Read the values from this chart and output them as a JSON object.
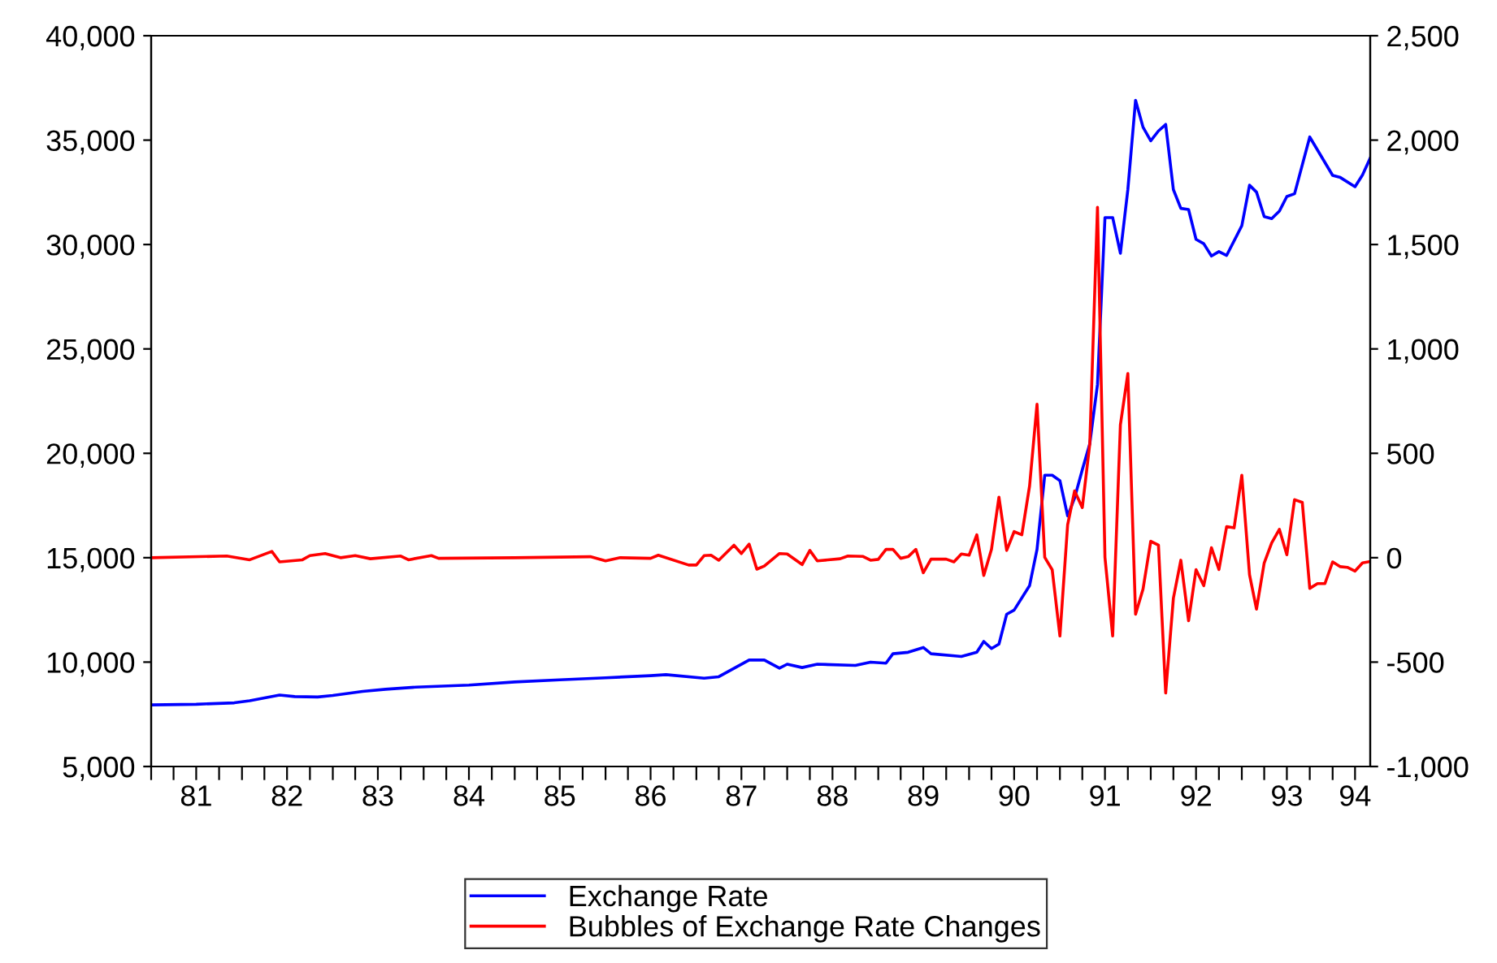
{
  "chart_data": {
    "type": "line",
    "xlim": [
      "1981-01",
      "1994-06"
    ],
    "xticks": [
      {
        "value": "1981-01",
        "label": null
      },
      {
        "value": "1981-04",
        "label": null
      },
      {
        "value": "1981-07",
        "label": "81"
      },
      {
        "value": "1981-10",
        "label": null
      },
      {
        "value": "1982-01",
        "label": null
      },
      {
        "value": "1982-04",
        "label": null
      },
      {
        "value": "1982-07",
        "label": "82"
      },
      {
        "value": "1982-10",
        "label": null
      },
      {
        "value": "1983-01",
        "label": null
      },
      {
        "value": "1983-04",
        "label": null
      },
      {
        "value": "1983-07",
        "label": "83"
      },
      {
        "value": "1983-10",
        "label": null
      },
      {
        "value": "1984-01",
        "label": null
      },
      {
        "value": "1984-04",
        "label": null
      },
      {
        "value": "1984-07",
        "label": "84"
      },
      {
        "value": "1984-10",
        "label": null
      },
      {
        "value": "1985-01",
        "label": null
      },
      {
        "value": "1985-04",
        "label": null
      },
      {
        "value": "1985-07",
        "label": "85"
      },
      {
        "value": "1985-10",
        "label": null
      },
      {
        "value": "1986-01",
        "label": null
      },
      {
        "value": "1986-04",
        "label": null
      },
      {
        "value": "1986-07",
        "label": "86"
      },
      {
        "value": "1986-10",
        "label": null
      },
      {
        "value": "1987-01",
        "label": null
      },
      {
        "value": "1987-04",
        "label": null
      },
      {
        "value": "1987-07",
        "label": "87"
      },
      {
        "value": "1987-10",
        "label": null
      },
      {
        "value": "1988-01",
        "label": null
      },
      {
        "value": "1988-04",
        "label": null
      },
      {
        "value": "1988-07",
        "label": "88"
      },
      {
        "value": "1988-10",
        "label": null
      },
      {
        "value": "1989-01",
        "label": null
      },
      {
        "value": "1989-04",
        "label": null
      },
      {
        "value": "1989-07",
        "label": "89"
      },
      {
        "value": "1989-10",
        "label": null
      },
      {
        "value": "1990-01",
        "label": null
      },
      {
        "value": "1990-04",
        "label": null
      },
      {
        "value": "1990-07",
        "label": "90"
      },
      {
        "value": "1990-10",
        "label": null
      },
      {
        "value": "1991-01",
        "label": null
      },
      {
        "value": "1991-04",
        "label": null
      },
      {
        "value": "1991-07",
        "label": "91"
      },
      {
        "value": "1991-10",
        "label": null
      },
      {
        "value": "1992-01",
        "label": null
      },
      {
        "value": "1992-04",
        "label": null
      },
      {
        "value": "1992-07",
        "label": "92"
      },
      {
        "value": "1992-10",
        "label": null
      },
      {
        "value": "1993-01",
        "label": null
      },
      {
        "value": "1993-04",
        "label": null
      },
      {
        "value": "1993-07",
        "label": "93"
      },
      {
        "value": "1993-10",
        "label": null
      },
      {
        "value": "1994-01",
        "label": null
      },
      {
        "value": "1994-04",
        "label": "94"
      }
    ],
    "ylim": [
      5000,
      40000
    ],
    "yticks": [
      {
        "value": 5000,
        "label": "5,000"
      },
      {
        "value": 10000,
        "label": "10,000"
      },
      {
        "value": 15000,
        "label": "15,000"
      },
      {
        "value": 20000,
        "label": "20,000"
      },
      {
        "value": 25000,
        "label": "25,000"
      },
      {
        "value": 30000,
        "label": "30,000"
      },
      {
        "value": 35000,
        "label": "35,000"
      },
      {
        "value": 40000,
        "label": "40,000"
      }
    ],
    "y2lim": [
      -1000,
      2500
    ],
    "y2ticks": [
      {
        "value": -1000,
        "label": "-1,000"
      },
      {
        "value": -500,
        "label": "-500"
      },
      0,
      500,
      {
        "value": 1000,
        "label": "1,000"
      },
      {
        "value": 1500,
        "label": "1,500"
      },
      {
        "value": 2000,
        "label": "2,000"
      },
      {
        "value": 2500,
        "label": "2,500"
      }
    ],
    "grid": false,
    "legend": "bottom",
    "series": [
      {
        "name": "Exchange Rate",
        "color": "#0000ff",
        "x": [
          "1981-01",
          "1981-07",
          "1981-12",
          "1982-02",
          "1982-06",
          "1982-08",
          "1982-11",
          "1983-01",
          "1983-05",
          "1983-08",
          "1983-12",
          "1984-07",
          "1985-01",
          "1985-07",
          "1986-01",
          "1986-07",
          "1986-09",
          "1987-02",
          "1987-04",
          "1987-08",
          "1987-10",
          "1987-12",
          "1988-01",
          "1988-03",
          "1988-05",
          "1988-10",
          "1988-12",
          "1989-02",
          "1989-03",
          "1989-05",
          "1989-07",
          "1989-08",
          "1989-12",
          "1990-02",
          "1990-03",
          "1990-04",
          "1990-05",
          "1990-06",
          "1990-07",
          "1990-09",
          "1990-10",
          "1990-11",
          "1990-12",
          "1991-01",
          "1991-02",
          "1991-03",
          "1991-04",
          "1991-05",
          "1991-06",
          "1991-07",
          "1991-08",
          "1991-09",
          "1991-10",
          "1991-11",
          "1991-12",
          "1992-01",
          "1992-02",
          "1992-03",
          "1992-04",
          "1992-05",
          "1992-06",
          "1992-07",
          "1992-08",
          "1992-09",
          "1992-10",
          "1992-11",
          "1993-01",
          "1993-02",
          "1993-03",
          "1993-04",
          "1993-05",
          "1993-06",
          "1993-07",
          "1993-08",
          "1993-10",
          "1994-01",
          "1994-02",
          "1994-04",
          "1994-05",
          "1994-06"
        ],
        "values": [
          7950,
          7980,
          8050,
          8150,
          8420,
          8350,
          8330,
          8400,
          8600,
          8700,
          8800,
          8900,
          9050,
          9150,
          9250,
          9350,
          9400,
          9230,
          9300,
          10100,
          10100,
          9710,
          9900,
          9740,
          9900,
          9840,
          10000,
          9950,
          10400,
          10470,
          10700,
          10400,
          10270,
          10470,
          10990,
          10650,
          10860,
          12290,
          12490,
          13660,
          15400,
          18950,
          18950,
          18690,
          17000,
          17860,
          19210,
          20460,
          23300,
          31290,
          31290,
          29580,
          32630,
          36910,
          35620,
          34970,
          35440,
          35750,
          32630,
          31730,
          31680,
          30250,
          30040,
          29450,
          29660,
          29480,
          30900,
          32840,
          32510,
          31340,
          31240,
          31600,
          32300,
          32430,
          35150,
          33310,
          33210,
          32770,
          33330,
          34140
        ]
      },
      {
        "name": "Bubbles of Exchange Rate Changes",
        "color": "#ff0000",
        "axis": "y2",
        "x": [
          "1981-01",
          "1981-11",
          "1982-02",
          "1982-05",
          "1982-06",
          "1982-09",
          "1982-10",
          "1982-12",
          "1983-02",
          "1983-04",
          "1983-06",
          "1983-10",
          "1983-11",
          "1984-02",
          "1984-03",
          "1985-01",
          "1985-11",
          "1986-01",
          "1986-03",
          "1986-07",
          "1986-08",
          "1986-12",
          "1987-01",
          "1987-02",
          "1987-03",
          "1987-04",
          "1987-06",
          "1987-07",
          "1987-08",
          "1987-09",
          "1987-10",
          "1987-12",
          "1988-01",
          "1988-03",
          "1988-04",
          "1988-05",
          "1988-08",
          "1988-09",
          "1988-11",
          "1988-12",
          "1989-01",
          "1989-02",
          "1989-03",
          "1989-04",
          "1989-05",
          "1989-06",
          "1989-07",
          "1989-08",
          "1989-10",
          "1989-11",
          "1989-12",
          "1990-01",
          "1990-02",
          "1990-03",
          "1990-04",
          "1990-05",
          "1990-06",
          "1990-07",
          "1990-08",
          "1990-09",
          "1990-10",
          "1990-11",
          "1990-12",
          "1991-01",
          "1991-02",
          "1991-03",
          "1991-04",
          "1991-05",
          "1991-06",
          "1991-07",
          "1991-08",
          "1991-09",
          "1991-10",
          "1991-11",
          "1991-12",
          "1992-01",
          "1992-02",
          "1992-03",
          "1992-04",
          "1992-05",
          "1992-06",
          "1992-07",
          "1992-08",
          "1992-09",
          "1992-10",
          "1992-11",
          "1992-12",
          "1993-01",
          "1993-02",
          "1993-03",
          "1993-04",
          "1993-05",
          "1993-06",
          "1993-07",
          "1993-08",
          "1993-09",
          "1993-10",
          "1993-11",
          "1993-12",
          "1994-01",
          "1994-02",
          "1994-03",
          "1994-04",
          "1994-05",
          "1994-06"
        ],
        "values": [
          0,
          8,
          -10,
          30,
          -20,
          -10,
          10,
          20,
          0,
          10,
          -5,
          8,
          -10,
          10,
          -3,
          0,
          5,
          -15,
          0,
          -3,
          12,
          -35,
          -35,
          10,
          12,
          -12,
          60,
          20,
          65,
          -55,
          -40,
          20,
          18,
          -33,
          35,
          -15,
          -5,
          8,
          6,
          -12,
          -8,
          40,
          40,
          -3,
          5,
          40,
          -72,
          -7,
          -7,
          -20,
          18,
          12,
          110,
          -85,
          40,
          290,
          35,
          125,
          110,
          343,
          735,
          2,
          -58,
          -375,
          157,
          320,
          240,
          545,
          1678,
          2,
          -375,
          636,
          882,
          -271,
          -150,
          79,
          60,
          -648,
          -194,
          -12,
          -302,
          -57,
          -134,
          48,
          -57,
          149,
          143,
          395,
          -82,
          -246,
          -25,
          71,
          136,
          14,
          278,
          265,
          -147,
          -124,
          -124,
          -20,
          -43,
          -46,
          -64,
          -25,
          -18
        ]
      }
    ]
  }
}
